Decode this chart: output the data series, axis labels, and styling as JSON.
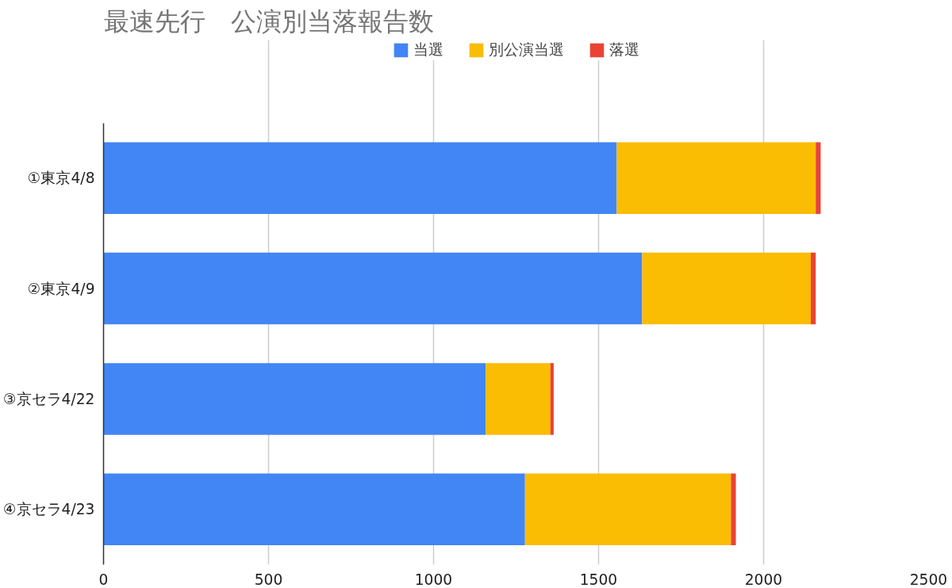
{
  "chart_data": {
    "type": "bar",
    "orientation": "horizontal",
    "stacked": true,
    "title": "最速先行　公演別当落報告数",
    "categories": [
      "①東京4/8",
      "②東京4/9",
      "③京セラ4/22",
      "④京セラ4/23"
    ],
    "series": [
      {
        "name": "当選",
        "color": "#4285f4",
        "values": [
          1555,
          1632,
          1158,
          1277
        ]
      },
      {
        "name": "別公演当選",
        "color": "#fbbc04",
        "values": [
          603,
          511,
          196,
          624
        ]
      },
      {
        "name": "落選",
        "color": "#ea4335",
        "values": [
          15,
          15,
          10,
          15
        ]
      }
    ],
    "xlim": [
      0,
      2500
    ],
    "xticks": [
      0,
      500,
      1000,
      1500,
      2000,
      2500
    ],
    "grid": "x",
    "legend": "top"
  }
}
